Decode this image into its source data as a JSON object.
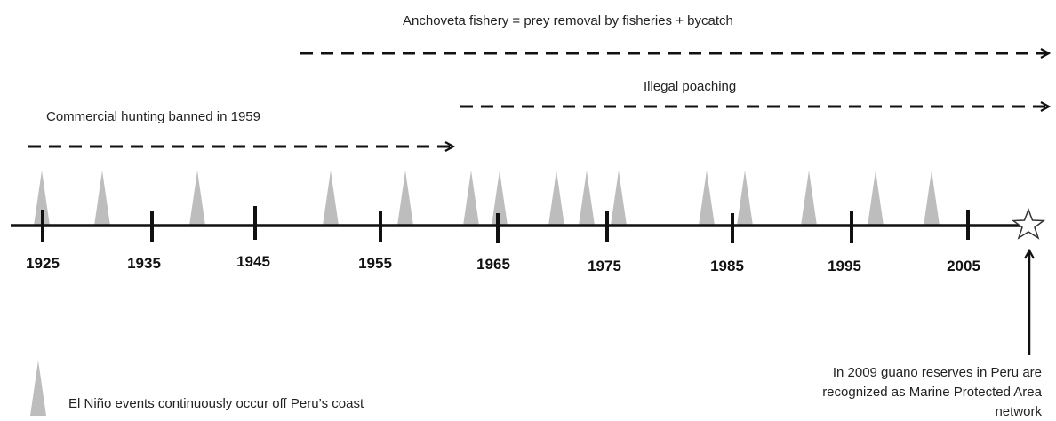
{
  "timeline": {
    "years": [
      "1925",
      "1935",
      "1945",
      "1955",
      "1965",
      "1975",
      "1985",
      "1995",
      "2005"
    ]
  },
  "arrows": [
    "Anchoveta fishery  = prey removal by fisheries + bycatch",
    "Illegal poaching",
    "Commercial hunting banned in 1959"
  ],
  "legend": "El Niño events continuously occur off Peru’s coast",
  "note": [
    "In 2009 guano reserves in Peru are",
    "recognized as Marine Protected Area",
    "network"
  ]
}
